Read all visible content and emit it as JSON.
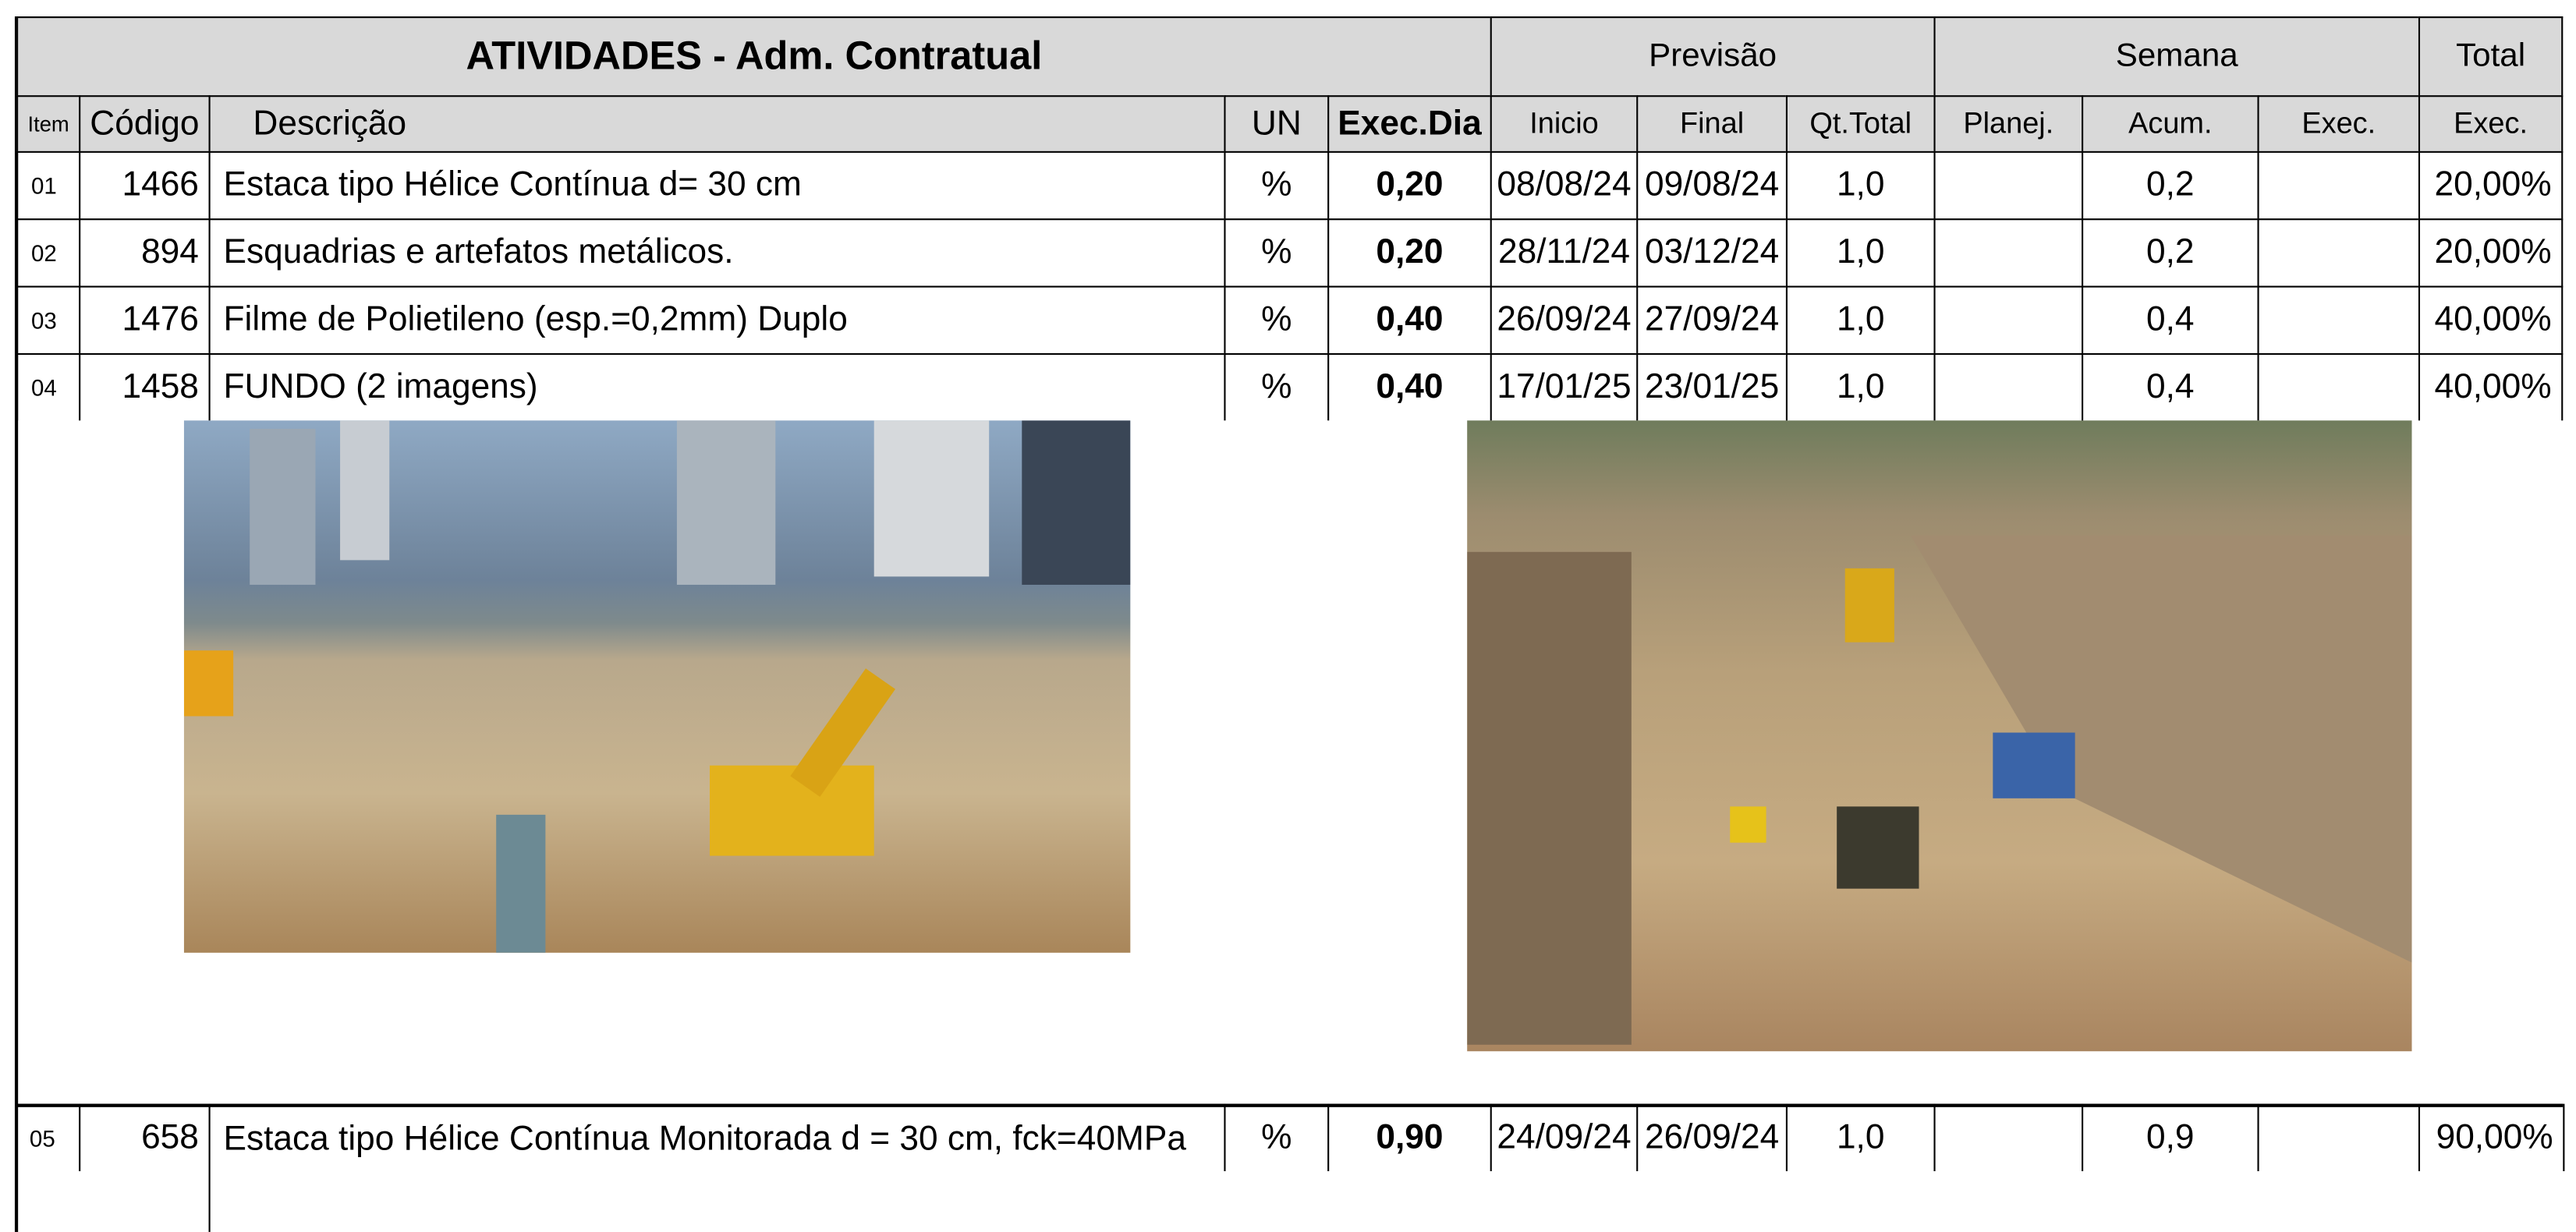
{
  "header": {
    "title": "ATIVIDADES - Adm. Contratual",
    "groups": [
      "Previsão",
      "Semana",
      "Total"
    ],
    "columns": [
      "Item",
      "Código",
      "Descrição",
      "UN",
      "Exec.Dia",
      "Inicio",
      "Final",
      "Qt.Total",
      "Planej.",
      "Acum.",
      "Exec.",
      "Exec."
    ]
  },
  "rows": [
    {
      "item": "01",
      "codigo": "1466",
      "descricao": "Estaca tipo Hélice Contínua d= 30 cm",
      "un": "%",
      "exec_dia": "0,20",
      "inicio": "08/08/24",
      "final": "09/08/24",
      "qt_total": "1,0",
      "acum": "0,2",
      "total": "20,00%"
    },
    {
      "item": "02",
      "codigo": "894",
      "descricao": "Esquadrias e artefatos metálicos.",
      "un": "%",
      "exec_dia": "0,20",
      "inicio": "28/11/24",
      "final": "03/12/24",
      "qt_total": "1,0",
      "acum": "0,2",
      "total": "20,00%"
    },
    {
      "item": "03",
      "codigo": "1476",
      "descricao": "Filme de Polietileno (esp.=0,2mm) Duplo",
      "un": "%",
      "exec_dia": "0,40",
      "inicio": "26/09/24",
      "final": "27/09/24",
      "qt_total": "1,0",
      "acum": "0,4",
      "total": "40,00%"
    },
    {
      "item": "04",
      "codigo": "1458",
      "descricao": "FUNDO (2 imagens)",
      "un": "%",
      "exec_dia": "0,40",
      "inicio": "17/01/25",
      "final": "23/01/25",
      "qt_total": "1,0",
      "acum": "0,4",
      "total": "40,00%"
    },
    {
      "item": "05",
      "codigo": "658",
      "descricao": "Estaca tipo Hélice Contínua Monitorada d = 30 cm, fck=40MPa",
      "un": "%",
      "exec_dia": "0,90",
      "inicio": "24/09/24",
      "final": "26/09/24",
      "qt_total": "1,0",
      "acum": "0,9",
      "total": "90,00%"
    }
  ]
}
